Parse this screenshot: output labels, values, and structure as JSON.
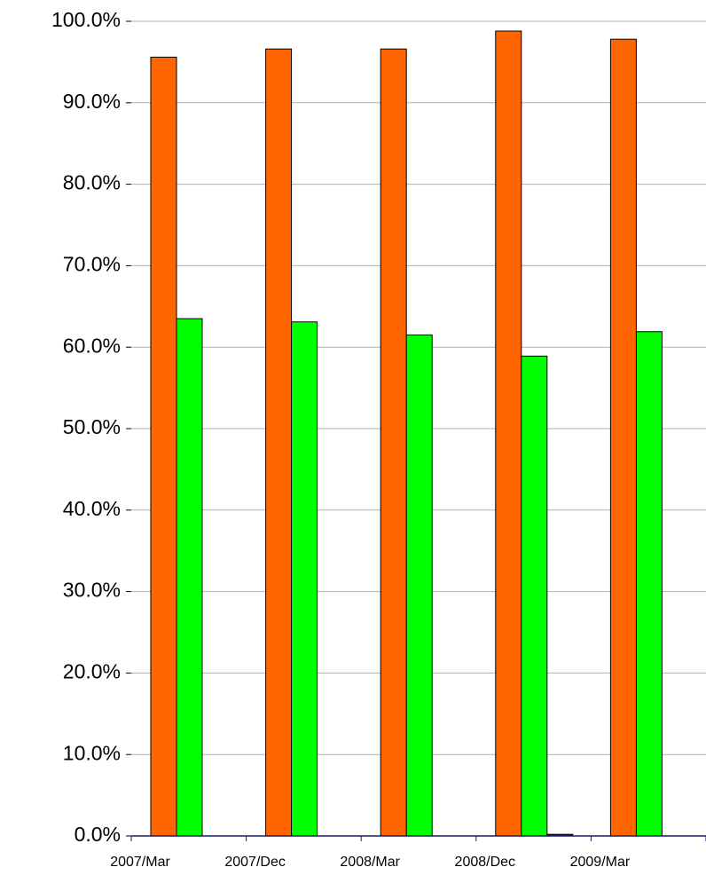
{
  "chart_data": {
    "type": "bar",
    "categories": [
      "2007/Mar",
      "2007/Dec",
      "2008/Mar",
      "2008/Dec",
      "2009/Mar"
    ],
    "series": [
      {
        "color": "#ff6600",
        "values": [
          95.6,
          96.6,
          96.6,
          98.8,
          97.8
        ]
      },
      {
        "color": "#00ff00",
        "values": [
          63.5,
          63.1,
          61.5,
          58.9,
          61.9
        ]
      },
      {
        "color": "#1a1a66",
        "values": [
          0,
          0,
          0,
          0.2,
          0
        ]
      }
    ],
    "ylim": [
      0,
      100
    ],
    "yticks": [
      {
        "value": 0,
        "label": "0.0%"
      },
      {
        "value": 10,
        "label": "10.0%"
      },
      {
        "value": 20,
        "label": "20.0%"
      },
      {
        "value": 30,
        "label": "30.0%"
      },
      {
        "value": 40,
        "label": "40.0%"
      },
      {
        "value": 50,
        "label": "50.0%"
      },
      {
        "value": 60,
        "label": "60.0%"
      },
      {
        "value": 70,
        "label": "70.0%"
      },
      {
        "value": 80,
        "label": "80.0%"
      },
      {
        "value": 90,
        "label": "90.0%"
      },
      {
        "value": 100,
        "label": "100.0%"
      }
    ],
    "grid": true
  }
}
